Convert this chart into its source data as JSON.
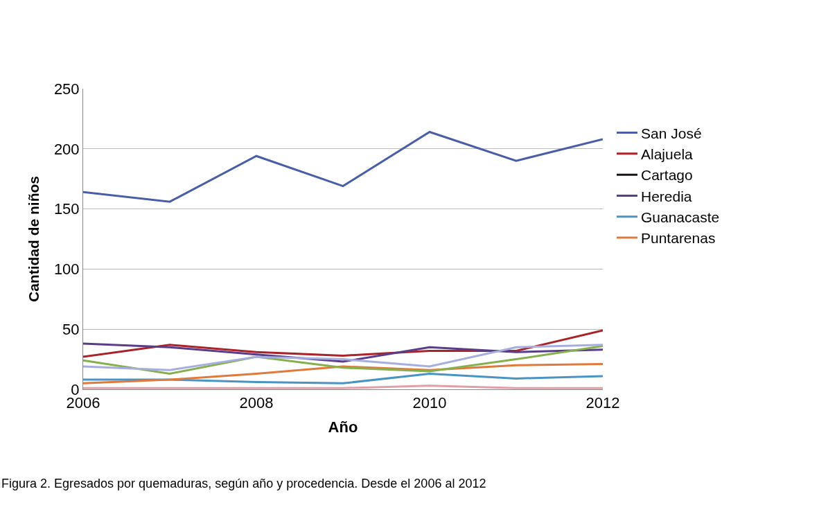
{
  "chart_data": {
    "type": "line",
    "xlabel": "Año",
    "ylabel": "Cantidad de niños",
    "x": [
      2006,
      2007,
      2008,
      2009,
      2010,
      2011,
      2012
    ],
    "series": [
      {
        "name": "San José",
        "color": "#4a5ea8",
        "values": [
          164,
          156,
          194,
          169,
          214,
          190,
          208
        ]
      },
      {
        "name": "Alajuela",
        "color": "#a8232a",
        "values": [
          27,
          37,
          31,
          28,
          32,
          32,
          49
        ]
      },
      {
        "name": "Cartago",
        "color": "#1a1416",
        "values": [
          null,
          null,
          null,
          null,
          null,
          null,
          null
        ]
      },
      {
        "name": "Heredia",
        "color": "#5a3d88",
        "values": [
          38,
          35,
          29,
          23,
          35,
          31,
          33
        ]
      },
      {
        "name": "Guanacaste",
        "color": "#4a94c4",
        "values": [
          8,
          8,
          6,
          5,
          13,
          9,
          11
        ]
      },
      {
        "name": "Puntarenas",
        "color": "#e07a3c",
        "values": [
          5,
          8,
          13,
          19,
          16,
          20,
          21
        ]
      },
      {
        "color": "#86b04e",
        "values": [
          24,
          13,
          27,
          18,
          15,
          25,
          36
        ]
      },
      {
        "color": "#a6aee0",
        "values": [
          19,
          16,
          27,
          25,
          19,
          35,
          37
        ]
      },
      {
        "color": "#e0a0a8",
        "values": [
          1,
          1,
          1,
          1,
          3,
          1,
          1
        ]
      }
    ],
    "xlim": [
      2006,
      2012
    ],
    "xticks": [
      2006,
      2008,
      2010,
      2012
    ],
    "ylim": [
      0,
      250
    ],
    "yticks": [
      0,
      50,
      100,
      150,
      200,
      250
    ],
    "grid": "y",
    "legend": "right",
    "marker": "none",
    "line_style": "solid",
    "annotations": [
      "Figura 2. Egresados por quemaduras, según año y procedencia. Desde el 2006 al 2012"
    ]
  }
}
